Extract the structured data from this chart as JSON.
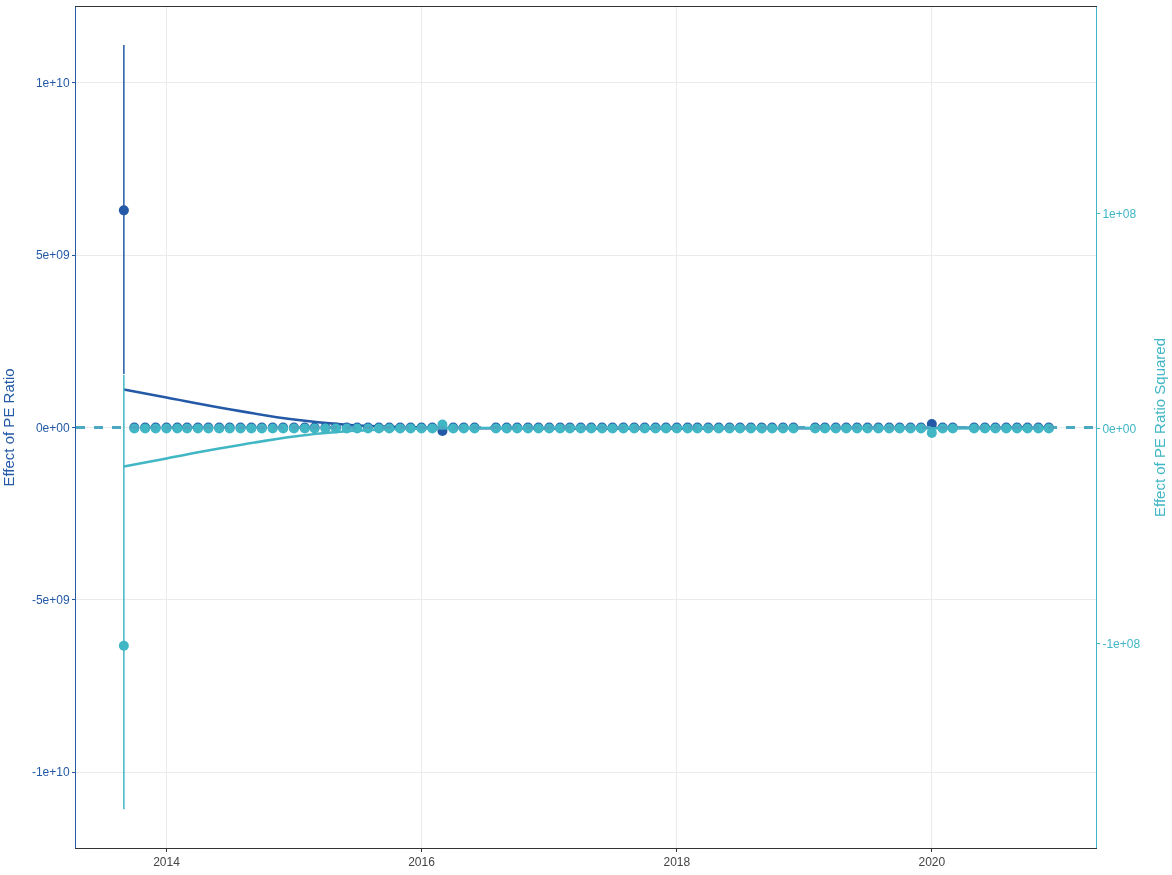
{
  "chart_data": {
    "type": "scatter",
    "ylabel": "Effect of PE Ratio",
    "y2label": "Effect of PE Ratio Squared",
    "x": [
      "2013-09",
      "2013-10",
      "2013-11",
      "2013-12",
      "2014-01",
      "2014-02",
      "2014-03",
      "2014-04",
      "2014-05",
      "2014-06",
      "2014-07",
      "2014-08",
      "2014-09",
      "2014-10",
      "2014-11",
      "2014-12",
      "2015-01",
      "2015-02",
      "2015-03",
      "2015-04",
      "2015-05",
      "2015-06",
      "2015-07",
      "2015-08",
      "2015-09",
      "2015-10",
      "2015-11",
      "2015-12",
      "2016-01",
      "2016-02",
      "2016-03",
      "2016-04",
      "2016-05",
      "2016-06",
      "2016-08",
      "2016-09",
      "2016-10",
      "2016-11",
      "2016-12",
      "2017-01",
      "2017-02",
      "2017-03",
      "2017-04",
      "2017-05",
      "2017-06",
      "2017-07",
      "2017-08",
      "2017-09",
      "2017-10",
      "2017-11",
      "2017-12",
      "2018-01",
      "2018-02",
      "2018-03",
      "2018-04",
      "2018-05",
      "2018-06",
      "2018-07",
      "2018-08",
      "2018-09",
      "2018-10",
      "2018-11",
      "2018-12",
      "2019-02",
      "2019-03",
      "2019-04",
      "2019-05",
      "2019-06",
      "2019-07",
      "2019-08",
      "2019-09",
      "2019-10",
      "2019-11",
      "2019-12",
      "2020-01",
      "2020-02",
      "2020-03",
      "2020-05",
      "2020-06",
      "2020-07",
      "2020-08",
      "2020-09",
      "2020-10",
      "2020-11",
      "2020-12"
    ],
    "series": [
      {
        "type": "line",
        "color": "#2359a6",
        "x": [
          "2013-09",
          "2014-01",
          "2014-06",
          "2015-01",
          "2015-06",
          "2016-01",
          "2020-12"
        ],
        "values": [
          1100000000.0,
          870000000.0,
          580000000.0,
          230000000.0,
          80000000.0,
          0,
          0
        ]
      },
      {
        "type": "line",
        "color": "#41b6c4",
        "axis": "y2",
        "x": [
          "2013-09",
          "2014-01",
          "2014-06",
          "2015-01",
          "2015-06",
          "2016-01",
          "2020-12"
        ],
        "values": [
          -17600000.0,
          -13900000.0,
          -9300000.0,
          -3700000.0,
          -1300000.0,
          0,
          0
        ]
      },
      {
        "color": "#2359a6",
        "marker": "circle",
        "values": [
          6300000000.0,
          0,
          0,
          0,
          0,
          0,
          0,
          0,
          0,
          0,
          0,
          0,
          0,
          0,
          0,
          0,
          0,
          0,
          0,
          0,
          0,
          0,
          0,
          0,
          0,
          0,
          0,
          0,
          0,
          0,
          -100000000.0,
          0,
          0,
          0,
          0,
          0,
          0,
          0,
          0,
          0,
          0,
          0,
          0,
          0,
          0,
          0,
          0,
          0,
          0,
          0,
          0,
          0,
          0,
          0,
          0,
          0,
          0,
          0,
          0,
          0,
          0,
          0,
          0,
          0,
          0,
          0,
          0,
          0,
          0,
          0,
          0,
          0,
          0,
          0,
          100000000.0,
          0,
          0,
          0,
          0,
          0,
          0,
          0,
          0,
          0,
          0
        ],
        "errors": [
          [
            1550000000.0,
            11100000000.0
          ],
          null,
          null,
          null,
          null,
          null,
          null,
          null,
          null,
          null,
          null,
          null,
          null,
          null,
          null,
          null,
          null,
          null,
          null,
          null,
          null,
          null,
          null,
          null,
          null,
          null,
          null,
          null,
          null,
          null,
          null,
          null,
          null,
          null,
          null,
          null,
          null,
          null,
          null,
          null,
          null,
          null,
          null,
          null,
          null,
          null,
          null,
          null,
          null,
          null,
          null,
          null,
          null,
          null,
          null,
          null,
          null,
          null,
          null,
          null,
          null,
          null,
          null,
          null,
          null,
          null,
          null,
          null,
          null,
          null,
          null,
          null,
          null,
          null,
          null,
          null,
          null,
          null,
          null,
          null,
          null,
          null,
          null,
          null,
          null
        ]
      },
      {
        "color": "#41b6c4",
        "axis": "y2",
        "marker": "circle",
        "values": [
          -101000000.0,
          0,
          0,
          0,
          0,
          0,
          0,
          0,
          0,
          0,
          0,
          0,
          0,
          0,
          0,
          0,
          0,
          0,
          0,
          0,
          0,
          0,
          0,
          0,
          0,
          0,
          0,
          0,
          0,
          0,
          1900000.0,
          0,
          0,
          0,
          0,
          0,
          0,
          0,
          0,
          0,
          0,
          0,
          0,
          0,
          0,
          0,
          0,
          0,
          0,
          0,
          0,
          0,
          0,
          0,
          0,
          0,
          0,
          0,
          0,
          0,
          0,
          0,
          0,
          0,
          0,
          0,
          0,
          0,
          0,
          0,
          0,
          0,
          0,
          0,
          -2000000.0,
          0,
          0,
          0,
          0,
          0,
          0,
          0,
          0,
          0,
          0
        ],
        "errors": [
          [
            -177000000.0,
            25000000.0
          ],
          null,
          null,
          null,
          null,
          null,
          null,
          null,
          null,
          null,
          null,
          null,
          null,
          null,
          null,
          null,
          null,
          null,
          null,
          null,
          null,
          null,
          null,
          null,
          null,
          null,
          null,
          null,
          null,
          null,
          null,
          null,
          null,
          null,
          null,
          null,
          null,
          null,
          null,
          null,
          null,
          null,
          null,
          null,
          null,
          null,
          null,
          null,
          null,
          null,
          null,
          null,
          null,
          null,
          null,
          null,
          null,
          null,
          null,
          null,
          null,
          null,
          null,
          null,
          null,
          null,
          null,
          null,
          null,
          null,
          null,
          null,
          null,
          null,
          null,
          null,
          null,
          null,
          null,
          null,
          null,
          null,
          null,
          null,
          null
        ]
      }
    ],
    "ref_lines": [
      {
        "axis": "y",
        "value": 0,
        "color": "#4aa8c0",
        "line_style": "dashed"
      }
    ],
    "xlim": [
      "2013-04-17",
      "2021-04-15"
    ],
    "xticks": [
      "2014",
      "2016",
      "2018",
      "2020"
    ],
    "ylim": [
      -12200000000.0,
      12200000000.0
    ],
    "yticks": [
      {
        "value": -10000000000.0,
        "label": "-1e+10"
      },
      {
        "value": -5000000000.0,
        "label": "-5e+09"
      },
      {
        "value": 0,
        "label": "0e+00"
      },
      {
        "value": 5000000000.0,
        "label": "5e+09"
      },
      {
        "value": 10000000000.0,
        "label": "1e+10"
      }
    ],
    "y2lim": [
      -195000000.0,
      196000000.0
    ],
    "y2ticks": [
      {
        "value": -100000000.0,
        "label": "-1e+08"
      },
      {
        "value": 0,
        "label": "0e+00"
      },
      {
        "value": 100000000.0,
        "label": "1e+08"
      }
    ],
    "grid": true
  }
}
